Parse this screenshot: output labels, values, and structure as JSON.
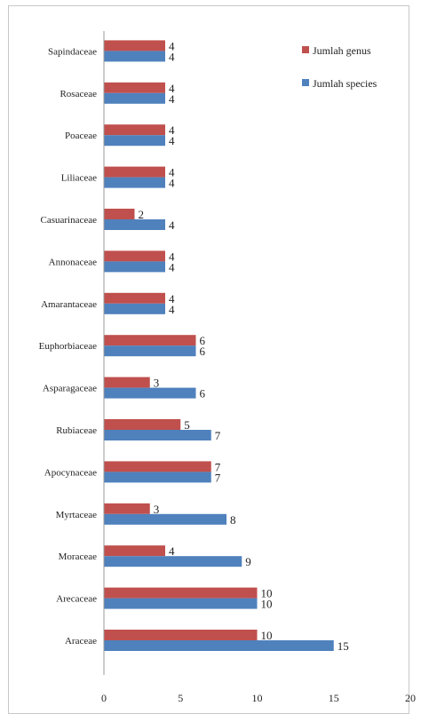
{
  "chart_data": {
    "type": "bar",
    "orientation": "horizontal",
    "categories": [
      "Araceae",
      "Arecaceae",
      "Moraceae",
      "Myrtaceae",
      "Apocynaceae",
      "Rubiaceae",
      "Asparagaceae",
      "Euphorbiaceae",
      "Amarantaceae",
      "Annonaceae",
      "Casuarinaceae",
      "Liliaceae",
      "Poaceae",
      "Rosaceae",
      "Sapindaceae"
    ],
    "series": [
      {
        "name": "Jumlah genus",
        "color": "#c0504d",
        "values": [
          10,
          10,
          4,
          3,
          7,
          5,
          3,
          6,
          4,
          4,
          2,
          4,
          4,
          4,
          4
        ]
      },
      {
        "name": "Jumlah species",
        "color": "#4f81bd",
        "values": [
          15,
          10,
          9,
          8,
          7,
          7,
          6,
          6,
          4,
          4,
          4,
          4,
          4,
          4,
          4
        ]
      }
    ],
    "xlim": [
      0,
      20
    ],
    "xticks": [
      "0",
      "5",
      "10",
      "15",
      "20"
    ],
    "grid": false,
    "legend_position": "top-right"
  }
}
